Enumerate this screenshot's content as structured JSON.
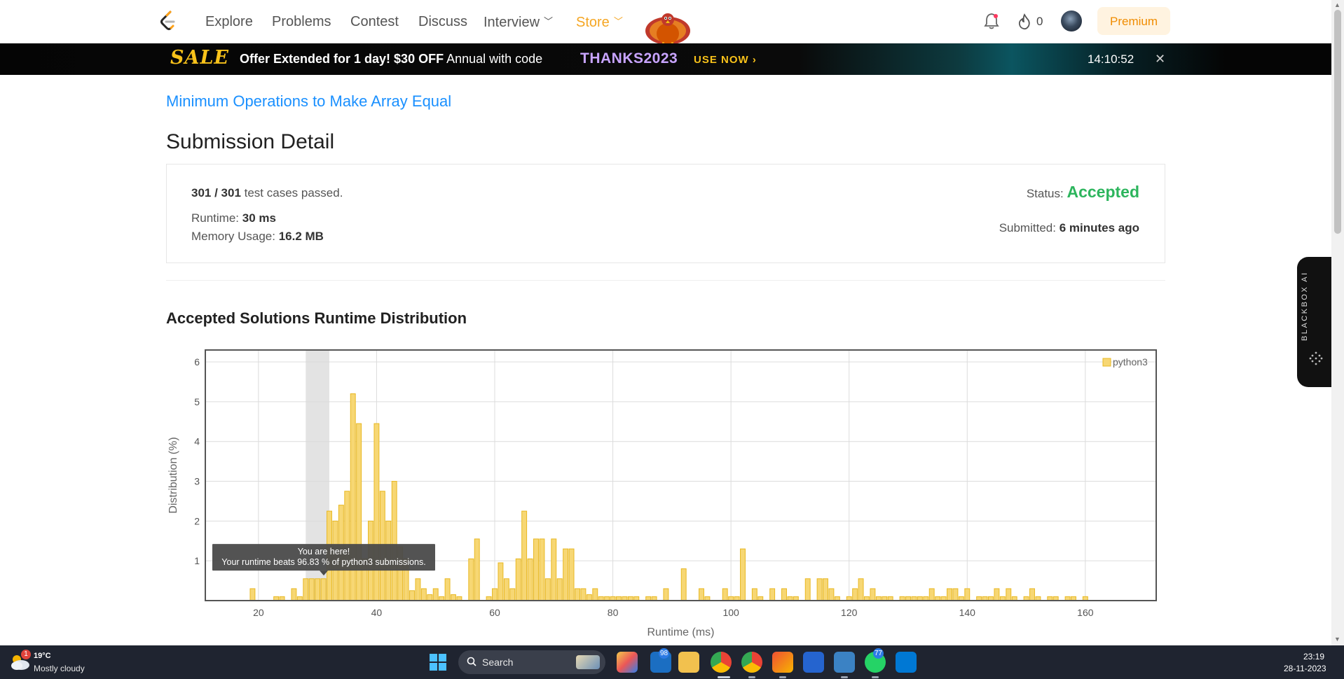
{
  "nav": {
    "items": [
      {
        "label": "Explore"
      },
      {
        "label": "Problems"
      },
      {
        "label": "Contest"
      },
      {
        "label": "Discuss"
      },
      {
        "label": "Interview"
      },
      {
        "label": "Store"
      }
    ],
    "streak_count": "0",
    "premium_label": "Premium"
  },
  "banner": {
    "sale_word": "SALE",
    "offer_bold": "Offer Extended for 1 day! $30 OFF",
    "offer_rest": " Annual with code ",
    "code": "THANKS2023",
    "cta": "USE NOW",
    "countdown": "14:10:52",
    "close_glyph": "✕"
  },
  "problem": {
    "title": "Minimum Operations to Make Array Equal"
  },
  "submission": {
    "heading": "Submission Detail",
    "passed": "301 / 301",
    "passed_suffix": " test cases passed.",
    "runtime_label": "Runtime: ",
    "runtime_value": "30 ms",
    "memory_label": "Memory Usage: ",
    "memory_value": "16.2 MB",
    "status_label": "Status: ",
    "status_value": "Accepted",
    "submitted_label": "Submitted: ",
    "submitted_value": "6 minutes ago"
  },
  "distribution": {
    "heading": "Accepted Solutions Runtime Distribution",
    "tooltip_title": "You are here!",
    "tooltip_body": "Your runtime beats 96.83 % of python3 submissions."
  },
  "chart_data": {
    "type": "bar",
    "xlabel": "Runtime (ms)",
    "ylabel": "Distribution (%)",
    "xlim": [
      11,
      172
    ],
    "ylim": [
      0,
      6.3
    ],
    "x_ticks": [
      20,
      40,
      60,
      80,
      100,
      120,
      140,
      160
    ],
    "y_ticks": [
      1,
      2,
      3,
      4,
      5,
      6
    ],
    "grid": true,
    "legend": "top-right",
    "highlight_range": [
      28,
      32
    ],
    "color": "#f7d774",
    "edge_color": "#e8b823",
    "series": [
      {
        "name": "python3",
        "x": [
          19,
          23,
          24,
          26,
          27,
          28,
          29,
          30,
          31,
          32,
          33,
          34,
          35,
          36,
          37,
          38,
          39,
          40,
          41,
          42,
          43,
          44,
          45,
          46,
          47,
          48,
          49,
          50,
          51,
          52,
          53,
          54,
          56,
          57,
          59,
          60,
          61,
          62,
          63,
          64,
          65,
          66,
          67,
          68,
          69,
          70,
          71,
          72,
          73,
          74,
          75,
          76,
          77,
          78,
          79,
          80,
          81,
          82,
          83,
          84,
          86,
          87,
          89,
          92,
          95,
          96,
          99,
          100,
          101,
          102,
          104,
          105,
          107,
          109,
          110,
          111,
          113,
          115,
          116,
          117,
          118,
          120,
          121,
          122,
          123,
          124,
          125,
          126,
          127,
          129,
          130,
          131,
          132,
          133,
          134,
          135,
          136,
          137,
          138,
          139,
          140,
          142,
          143,
          144,
          145,
          146,
          147,
          148,
          150,
          151,
          152,
          154,
          155,
          157,
          158,
          160
        ],
        "values": [
          0.3,
          0.1,
          0.1,
          0.3,
          0.1,
          0.55,
          0.55,
          0.55,
          0.55,
          2.25,
          2.0,
          2.4,
          2.75,
          5.2,
          4.45,
          1.05,
          2.0,
          4.45,
          2.75,
          2.0,
          3.0,
          1.35,
          1.05,
          0.25,
          0.55,
          0.3,
          0.15,
          0.3,
          0.1,
          0.55,
          0.15,
          0.1,
          1.05,
          1.55,
          0.1,
          0.3,
          0.95,
          0.55,
          0.3,
          1.05,
          2.25,
          1.05,
          1.55,
          1.55,
          0.55,
          1.55,
          0.55,
          1.3,
          1.3,
          0.3,
          0.3,
          0.15,
          0.3,
          0.1,
          0.1,
          0.1,
          0.1,
          0.1,
          0.1,
          0.1,
          0.1,
          0.1,
          0.3,
          0.8,
          0.3,
          0.1,
          0.3,
          0.1,
          0.1,
          1.3,
          0.3,
          0.1,
          0.3,
          0.3,
          0.1,
          0.1,
          0.55,
          0.55,
          0.55,
          0.3,
          0.1,
          0.1,
          0.3,
          0.55,
          0.1,
          0.3,
          0.1,
          0.1,
          0.1,
          0.1,
          0.1,
          0.1,
          0.1,
          0.1,
          0.3,
          0.1,
          0.1,
          0.3,
          0.3,
          0.1,
          0.3,
          0.1,
          0.1,
          0.1,
          0.3,
          0.1,
          0.3,
          0.1,
          0.1,
          0.3,
          0.1,
          0.1,
          0.1,
          0.1,
          0.1,
          0.1
        ]
      }
    ]
  },
  "blackbox": {
    "label": "BLACKBOX AI"
  },
  "taskbar": {
    "weather_badge": "1",
    "weather_temp": "19°C",
    "weather_desc": "Mostly cloudy",
    "search_label": "Search",
    "mail_badge": "98",
    "whatsapp_badge": "77",
    "time": "23:19",
    "date": "28-11-2023"
  }
}
